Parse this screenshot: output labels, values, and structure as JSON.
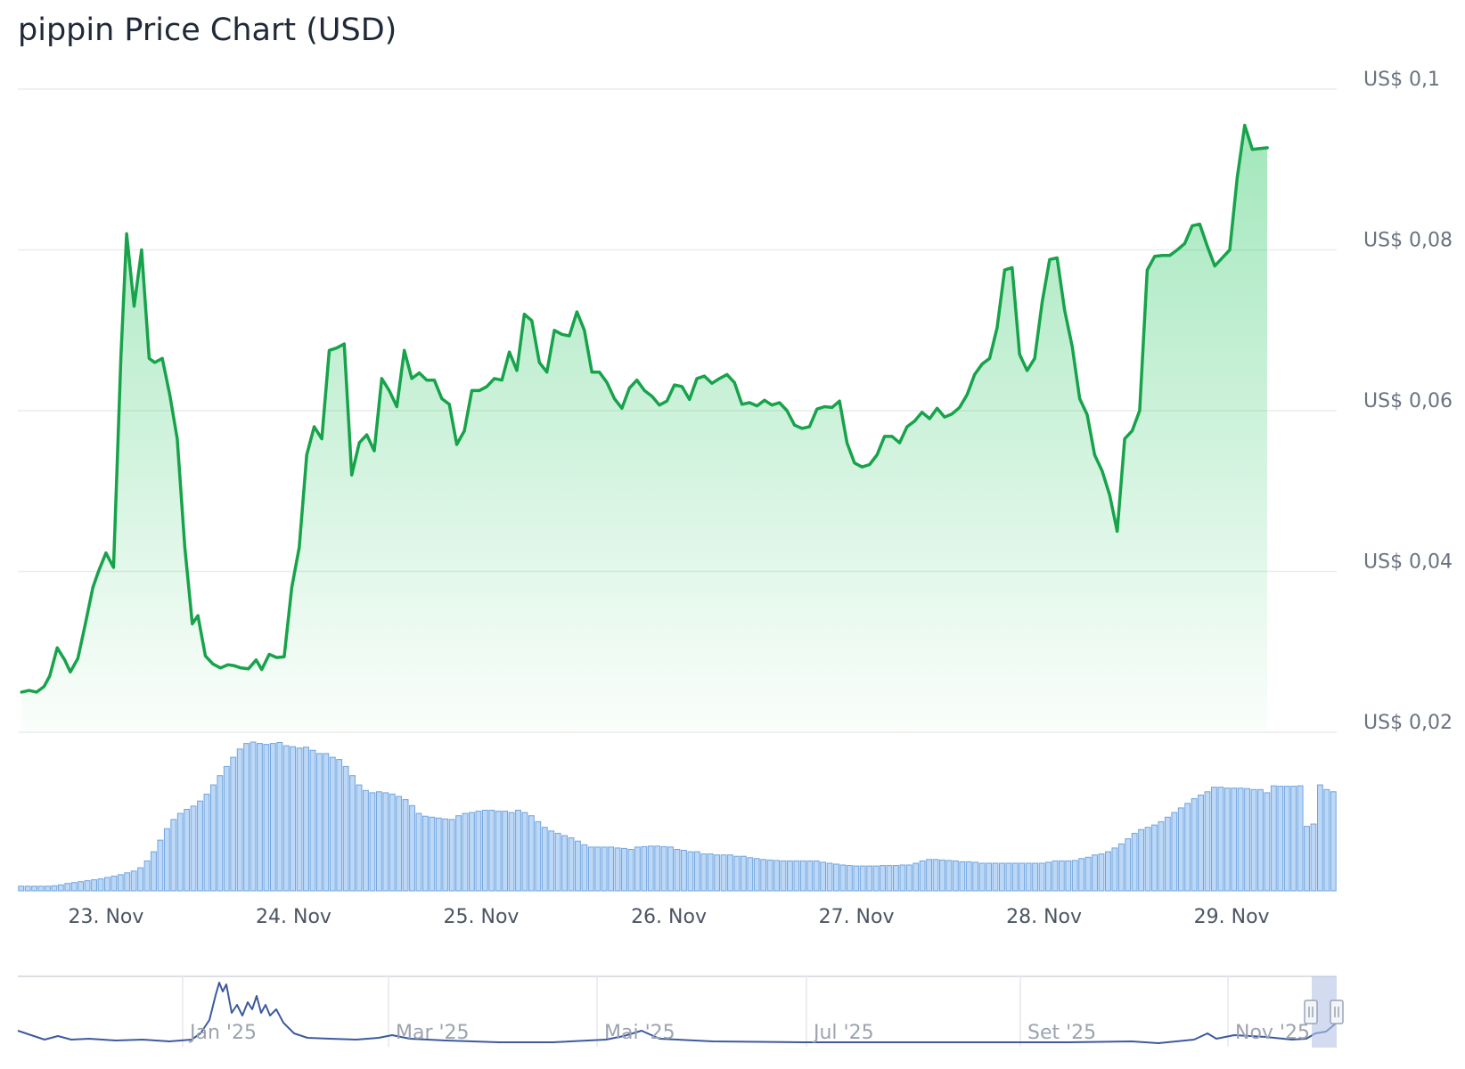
{
  "header": {
    "title": "pippin Price Chart (USD)"
  },
  "colors": {
    "line": "#16a34a",
    "area": "#22c55e",
    "volume_fill": "#bcd8f6",
    "volume_stroke": "#6fa4e0",
    "navigator": "#3d5a9e",
    "grid": "#ececec"
  },
  "chart_data": {
    "type": "line",
    "title": "pippin Price Chart (USD)",
    "y_ticks": [
      "US$ 0,02",
      "US$ 0,04",
      "US$ 0,06",
      "US$ 0,08",
      "US$ 0,1"
    ],
    "y_tick_values": [
      0.02,
      0.04,
      0.06,
      0.08,
      0.1
    ],
    "ylim": [
      0.02,
      0.1
    ],
    "x_ticks": [
      "23. Nov",
      "24. Nov",
      "25. Nov",
      "26. Nov",
      "27. Nov",
      "28. Nov",
      "29. Nov"
    ],
    "x_range_days": [
      22.53,
      29.56
    ],
    "series": [
      {
        "values": [
          [
            22.55,
            0.025
          ],
          [
            22.59,
            0.0252
          ],
          [
            22.63,
            0.025
          ],
          [
            22.67,
            0.0257
          ],
          [
            22.7,
            0.027
          ],
          [
            22.74,
            0.0305
          ],
          [
            22.78,
            0.029
          ],
          [
            22.81,
            0.0275
          ],
          [
            22.85,
            0.0292
          ],
          [
            22.89,
            0.0335
          ],
          [
            22.93,
            0.038
          ],
          [
            22.96,
            0.04
          ],
          [
            23.0,
            0.0423
          ],
          [
            23.04,
            0.0405
          ],
          [
            23.08,
            0.067
          ],
          [
            23.11,
            0.082
          ],
          [
            23.15,
            0.073
          ],
          [
            23.19,
            0.08
          ],
          [
            23.23,
            0.0665
          ],
          [
            23.26,
            0.066
          ],
          [
            23.3,
            0.0665
          ],
          [
            23.34,
            0.062
          ],
          [
            23.38,
            0.0565
          ],
          [
            23.42,
            0.043
          ],
          [
            23.46,
            0.0335
          ],
          [
            23.49,
            0.0345
          ],
          [
            23.53,
            0.0295
          ],
          [
            23.57,
            0.0285
          ],
          [
            23.61,
            0.028
          ],
          [
            23.65,
            0.0284
          ],
          [
            23.68,
            0.0283
          ],
          [
            23.72,
            0.028
          ],
          [
            23.76,
            0.0279
          ],
          [
            23.8,
            0.029
          ],
          [
            23.83,
            0.0278
          ],
          [
            23.87,
            0.0297
          ],
          [
            23.91,
            0.0293
          ],
          [
            23.95,
            0.0294
          ],
          [
            23.99,
            0.038
          ],
          [
            24.03,
            0.043
          ],
          [
            24.07,
            0.0545
          ],
          [
            24.11,
            0.058
          ],
          [
            24.15,
            0.0565
          ],
          [
            24.19,
            0.0675
          ],
          [
            24.23,
            0.0678
          ],
          [
            24.27,
            0.0683
          ],
          [
            24.31,
            0.052
          ],
          [
            24.35,
            0.056
          ],
          [
            24.39,
            0.057
          ],
          [
            24.43,
            0.055
          ],
          [
            24.47,
            0.064
          ],
          [
            24.51,
            0.0625
          ],
          [
            24.55,
            0.0605
          ],
          [
            24.59,
            0.0675
          ],
          [
            24.63,
            0.064
          ],
          [
            24.67,
            0.0647
          ],
          [
            24.71,
            0.0638
          ],
          [
            24.75,
            0.0638
          ],
          [
            24.79,
            0.0615
          ],
          [
            24.83,
            0.0608
          ],
          [
            24.87,
            0.0558
          ],
          [
            24.91,
            0.0575
          ],
          [
            24.95,
            0.0625
          ],
          [
            24.99,
            0.0625
          ],
          [
            25.03,
            0.063
          ],
          [
            25.07,
            0.064
          ],
          [
            25.11,
            0.0638
          ],
          [
            25.15,
            0.0673
          ],
          [
            25.19,
            0.065
          ],
          [
            25.23,
            0.072
          ],
          [
            25.27,
            0.0712
          ],
          [
            25.31,
            0.066
          ],
          [
            25.35,
            0.0648
          ],
          [
            25.39,
            0.07
          ],
          [
            25.43,
            0.0695
          ],
          [
            25.47,
            0.0693
          ],
          [
            25.51,
            0.0723
          ],
          [
            25.55,
            0.07
          ],
          [
            25.59,
            0.0648
          ],
          [
            25.63,
            0.0648
          ],
          [
            25.67,
            0.0635
          ],
          [
            25.71,
            0.0615
          ],
          [
            25.75,
            0.0603
          ],
          [
            25.79,
            0.0628
          ],
          [
            25.83,
            0.0638
          ],
          [
            25.87,
            0.0625
          ],
          [
            25.91,
            0.0618
          ],
          [
            25.95,
            0.0607
          ],
          [
            25.99,
            0.0612
          ],
          [
            26.03,
            0.0632
          ],
          [
            26.07,
            0.063
          ],
          [
            26.11,
            0.0614
          ],
          [
            26.15,
            0.064
          ],
          [
            26.19,
            0.0643
          ],
          [
            26.23,
            0.0634
          ],
          [
            26.27,
            0.064
          ],
          [
            26.31,
            0.0645
          ],
          [
            26.35,
            0.0635
          ],
          [
            26.39,
            0.0608
          ],
          [
            26.43,
            0.061
          ],
          [
            26.47,
            0.0606
          ],
          [
            26.51,
            0.0613
          ],
          [
            26.55,
            0.0607
          ],
          [
            26.59,
            0.061
          ],
          [
            26.63,
            0.06
          ],
          [
            26.67,
            0.0582
          ],
          [
            26.71,
            0.0578
          ],
          [
            26.75,
            0.058
          ],
          [
            26.79,
            0.0602
          ],
          [
            26.83,
            0.0605
          ],
          [
            26.87,
            0.0604
          ],
          [
            26.91,
            0.0612
          ],
          [
            26.95,
            0.056
          ],
          [
            26.99,
            0.0535
          ],
          [
            27.03,
            0.053
          ],
          [
            27.07,
            0.0533
          ],
          [
            27.11,
            0.0545
          ],
          [
            27.15,
            0.0568
          ],
          [
            27.19,
            0.0568
          ],
          [
            27.23,
            0.056
          ],
          [
            27.27,
            0.058
          ],
          [
            27.31,
            0.0587
          ],
          [
            27.35,
            0.0598
          ],
          [
            27.39,
            0.059
          ],
          [
            27.43,
            0.0603
          ],
          [
            27.47,
            0.0592
          ],
          [
            27.51,
            0.0596
          ],
          [
            27.55,
            0.0604
          ],
          [
            27.59,
            0.062
          ],
          [
            27.63,
            0.0645
          ],
          [
            27.67,
            0.0658
          ],
          [
            27.71,
            0.0665
          ],
          [
            27.75,
            0.0703
          ],
          [
            27.79,
            0.0775
          ],
          [
            27.83,
            0.0778
          ],
          [
            27.87,
            0.067
          ],
          [
            27.91,
            0.065
          ],
          [
            27.95,
            0.0665
          ],
          [
            27.99,
            0.0735
          ],
          [
            28.03,
            0.0788
          ],
          [
            28.07,
            0.079
          ],
          [
            28.11,
            0.0725
          ],
          [
            28.15,
            0.068
          ],
          [
            28.19,
            0.0615
          ],
          [
            28.23,
            0.0595
          ],
          [
            28.27,
            0.0545
          ],
          [
            28.31,
            0.0525
          ],
          [
            28.35,
            0.0495
          ],
          [
            28.39,
            0.045
          ],
          [
            28.43,
            0.0565
          ],
          [
            28.47,
            0.0575
          ],
          [
            28.51,
            0.06
          ],
          [
            28.55,
            0.0775
          ],
          [
            28.59,
            0.0792
          ],
          [
            28.63,
            0.0793
          ],
          [
            28.67,
            0.0793
          ],
          [
            28.71,
            0.08
          ],
          [
            28.75,
            0.0808
          ],
          [
            28.79,
            0.083
          ],
          [
            28.83,
            0.0832
          ],
          [
            28.87,
            0.0805
          ],
          [
            28.91,
            0.078
          ],
          [
            28.95,
            0.079
          ],
          [
            28.99,
            0.08
          ],
          [
            29.03,
            0.089
          ],
          [
            29.07,
            0.0955
          ],
          [
            29.11,
            0.0925
          ],
          [
            29.15,
            0.0926
          ],
          [
            29.19,
            0.0927
          ]
        ]
      }
    ],
    "volume": {
      "values": [
        1.0,
        1.0,
        1.0,
        1.0,
        1.0,
        1.1,
        1.3,
        1.6,
        1.8,
        2.0,
        2.2,
        2.4,
        2.6,
        2.9,
        3.2,
        3.5,
        3.9,
        4.3,
        5.0,
        6.5,
        8.5,
        11.0,
        13.5,
        15.5,
        16.8,
        17.7,
        18.4,
        19.5,
        21.0,
        23.0,
        25.0,
        27.0,
        29.0,
        30.8,
        32.0,
        32.3,
        32.0,
        31.8,
        32.0,
        32.2,
        31.5,
        31.3,
        31.0,
        31.2,
        30.5,
        29.8,
        29.8,
        29.0,
        28.5,
        27.0,
        25.0,
        23.0,
        21.8,
        21.3,
        21.5,
        21.3,
        21.0,
        20.5,
        19.8,
        18.5,
        16.8,
        16.2,
        16.0,
        15.8,
        15.6,
        15.5,
        16.3,
        16.8,
        17.0,
        17.3,
        17.5,
        17.5,
        17.3,
        17.3,
        17.0,
        17.5,
        17.0,
        16.3,
        15.0,
        13.8,
        13.0,
        12.5,
        12.0,
        11.5,
        10.8,
        10.0,
        9.5,
        9.5,
        9.5,
        9.5,
        9.3,
        9.2,
        9.0,
        9.5,
        9.6,
        9.7,
        9.7,
        9.6,
        9.5,
        9.0,
        8.8,
        8.5,
        8.5,
        8.0,
        8.0,
        7.8,
        7.8,
        7.8,
        7.5,
        7.5,
        7.2,
        7.0,
        6.8,
        6.7,
        6.6,
        6.5,
        6.5,
        6.5,
        6.5,
        6.5,
        6.5,
        6.2,
        6.0,
        5.8,
        5.6,
        5.5,
        5.4,
        5.4,
        5.4,
        5.4,
        5.5,
        5.5,
        5.5,
        5.6,
        5.6,
        6.0,
        6.5,
        6.8,
        6.8,
        6.7,
        6.6,
        6.5,
        6.3,
        6.3,
        6.2,
        6.0,
        6.0,
        6.0,
        6.0,
        6.0,
        6.0,
        6.0,
        6.0,
        6.0,
        6.0,
        6.2,
        6.5,
        6.5,
        6.5,
        6.6,
        7.0,
        7.3,
        7.8,
        8.0,
        8.5,
        9.3,
        10.2,
        11.3,
        12.5,
        13.3,
        13.8,
        14.3,
        15.0,
        16.0,
        17.0,
        18.0,
        19.0,
        20.0,
        20.8,
        21.5,
        22.5,
        22.5,
        22.3,
        22.3,
        22.3,
        22.2,
        22.0,
        22.0,
        21.3,
        22.8,
        22.7,
        22.7,
        22.7,
        22.8,
        14.0,
        14.5,
        23.0,
        22.0,
        21.5
      ]
    },
    "navigator": {
      "x_ticks": [
        "Jan '25",
        "Mar '25",
        "Mai '25",
        "Jul '25",
        "Set '25",
        "Nov '25"
      ]
    }
  }
}
